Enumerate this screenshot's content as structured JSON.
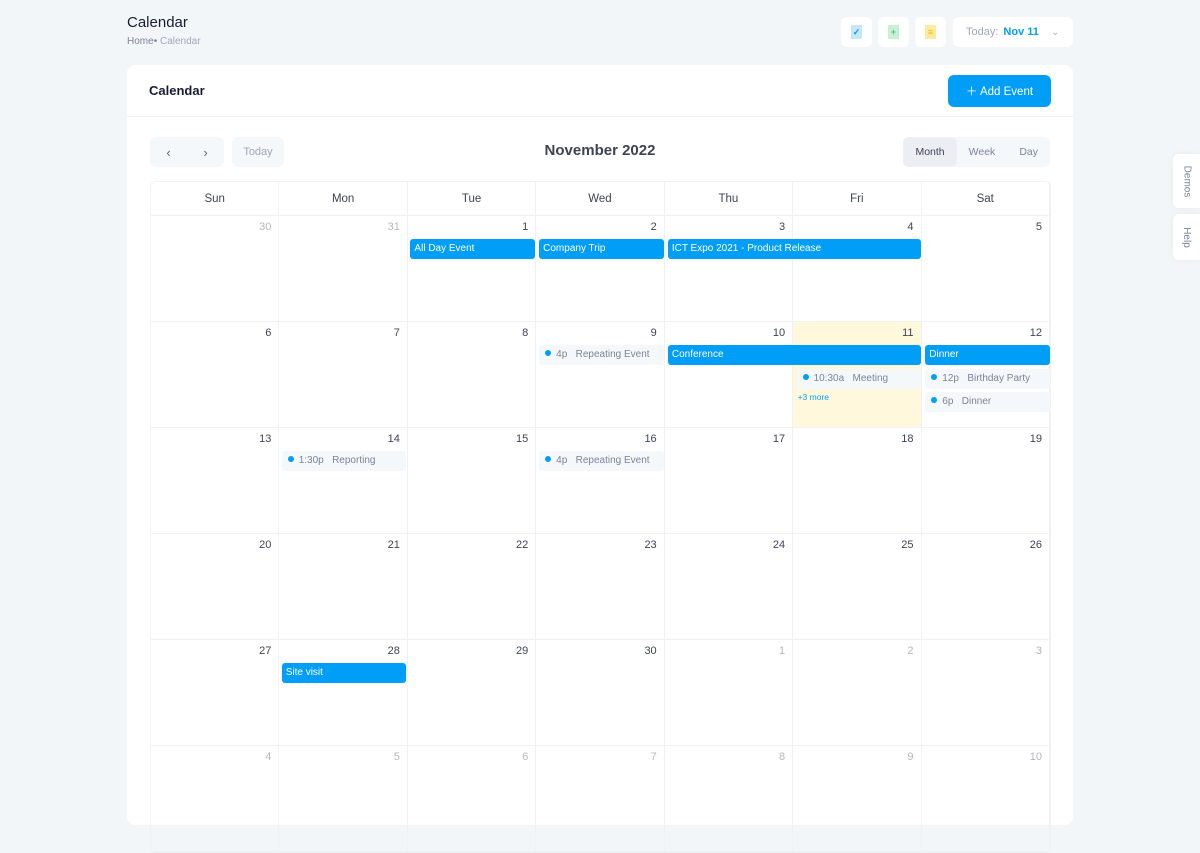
{
  "header": {
    "title": "Calendar",
    "breadcrumb": [
      "Home",
      "Calendar"
    ],
    "today_label": "Today:",
    "today_value": "Nov 11",
    "toolbar_icons": [
      "file-check-icon",
      "file-add-icon",
      "file-text-icon"
    ]
  },
  "card": {
    "title": "Calendar",
    "add_event": "Add Event",
    "month_title": "November 2022",
    "today_btn": "Today",
    "views": [
      "Month",
      "Week",
      "Day"
    ],
    "active_view": "Month"
  },
  "weekdays": [
    "Sun",
    "Mon",
    "Tue",
    "Wed",
    "Thu",
    "Fri",
    "Sat"
  ],
  "weeks": [
    [
      {
        "d": "30",
        "o": true
      },
      {
        "d": "31",
        "o": true
      },
      {
        "d": "1"
      },
      {
        "d": "2"
      },
      {
        "d": "3"
      },
      {
        "d": "4"
      },
      {
        "d": "5"
      }
    ],
    [
      {
        "d": "6"
      },
      {
        "d": "7"
      },
      {
        "d": "8"
      },
      {
        "d": "9"
      },
      {
        "d": "10"
      },
      {
        "d": "11",
        "today": true
      },
      {
        "d": "12"
      }
    ],
    [
      {
        "d": "13"
      },
      {
        "d": "14"
      },
      {
        "d": "15"
      },
      {
        "d": "16"
      },
      {
        "d": "17"
      },
      {
        "d": "18"
      },
      {
        "d": "19"
      }
    ],
    [
      {
        "d": "20"
      },
      {
        "d": "21"
      },
      {
        "d": "22"
      },
      {
        "d": "23"
      },
      {
        "d": "24"
      },
      {
        "d": "25"
      },
      {
        "d": "26"
      }
    ],
    [
      {
        "d": "27"
      },
      {
        "d": "28"
      },
      {
        "d": "29"
      },
      {
        "d": "30"
      },
      {
        "d": "1",
        "o": true
      },
      {
        "d": "2",
        "o": true
      },
      {
        "d": "3",
        "o": true
      }
    ],
    [
      {
        "d": "4",
        "o": true
      },
      {
        "d": "5",
        "o": true
      },
      {
        "d": "6",
        "o": true
      },
      {
        "d": "7",
        "o": true
      },
      {
        "d": "8",
        "o": true
      },
      {
        "d": "9",
        "o": true
      },
      {
        "d": "10",
        "o": true
      }
    ]
  ],
  "events": [
    {
      "week": 0,
      "col": 2,
      "span": 1,
      "slot": 0,
      "type": "bar",
      "title": "All Day Event"
    },
    {
      "week": 0,
      "col": 3,
      "span": 1,
      "slot": 0,
      "type": "bar",
      "title": "Company Trip"
    },
    {
      "week": 0,
      "col": 4,
      "span": 2,
      "slot": 0,
      "type": "bar",
      "title": "ICT Expo 2021 - Product Release"
    },
    {
      "week": 1,
      "col": 3,
      "span": 1,
      "slot": 0,
      "type": "dot",
      "time": "4p",
      "title": "Repeating Event"
    },
    {
      "week": 1,
      "col": 4,
      "span": 2,
      "slot": 0,
      "type": "bar",
      "title": "Conference"
    },
    {
      "week": 1,
      "col": 6,
      "span": 1,
      "slot": 0,
      "type": "bar",
      "title": "Dinner"
    },
    {
      "week": 1,
      "col": 5,
      "span": 1,
      "slot": 1,
      "type": "dot",
      "time": "10:30a",
      "title": "Meeting"
    },
    {
      "week": 1,
      "col": 6,
      "span": 1,
      "slot": 1,
      "type": "dot",
      "time": "12p",
      "title": "Birthday Party"
    },
    {
      "week": 1,
      "col": 6,
      "span": 1,
      "slot": 2,
      "type": "dot",
      "time": "6p",
      "title": "Dinner"
    },
    {
      "week": 2,
      "col": 1,
      "span": 1,
      "slot": 0,
      "type": "dot",
      "time": "1:30p",
      "title": "Reporting"
    },
    {
      "week": 2,
      "col": 3,
      "span": 1,
      "slot": 0,
      "type": "dot",
      "time": "4p",
      "title": "Repeating Event"
    },
    {
      "week": 4,
      "col": 1,
      "span": 1,
      "slot": 0,
      "type": "bar",
      "title": "Site visit"
    }
  ],
  "more": [
    {
      "week": 1,
      "col": 5,
      "slot": 2,
      "label": "+3 more"
    }
  ],
  "side_tabs": [
    "Demos",
    "Help"
  ],
  "colors": {
    "primary": "#009ef7",
    "today_bg": "#fff8dd"
  }
}
